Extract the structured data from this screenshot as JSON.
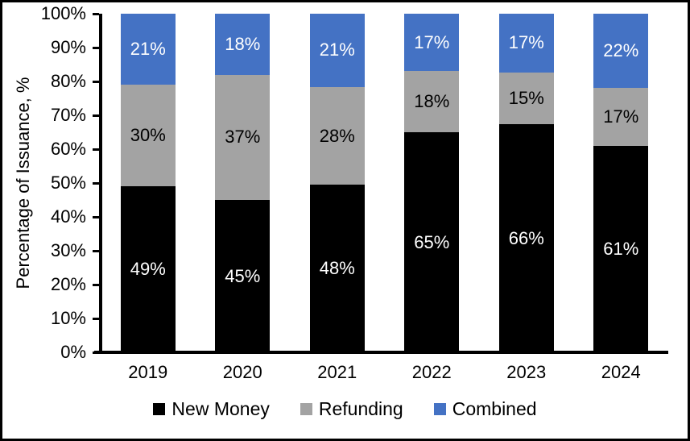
{
  "chart_data": {
    "type": "bar",
    "stacked": true,
    "title": "",
    "ylabel": "Percentage of Issuance, %",
    "xlabel": "",
    "ylim": [
      0,
      100
    ],
    "value_suffix": "%",
    "grid": false,
    "legend_position": "bottom",
    "categories": [
      "2019",
      "2020",
      "2021",
      "2022",
      "2023",
      "2024"
    ],
    "y_ticks": [
      "0%",
      "10%",
      "20%",
      "30%",
      "40%",
      "50%",
      "60%",
      "70%",
      "80%",
      "90%",
      "100%"
    ],
    "series": [
      {
        "name": "New Money",
        "color": "#000000",
        "label_color": "#ffffff",
        "values": [
          49,
          45,
          48,
          65,
          66,
          61
        ]
      },
      {
        "name": "Refunding",
        "color": "#A3A3A3",
        "label_color": "#000000",
        "values": [
          30,
          37,
          28,
          18,
          15,
          17
        ]
      },
      {
        "name": "Combined",
        "color": "#4472C4",
        "label_color": "#ffffff",
        "values": [
          21,
          18,
          21,
          17,
          17,
          22
        ]
      }
    ],
    "colors": {
      "axis": "#000000",
      "background": "#ffffff",
      "frame_border": "#000000"
    }
  }
}
